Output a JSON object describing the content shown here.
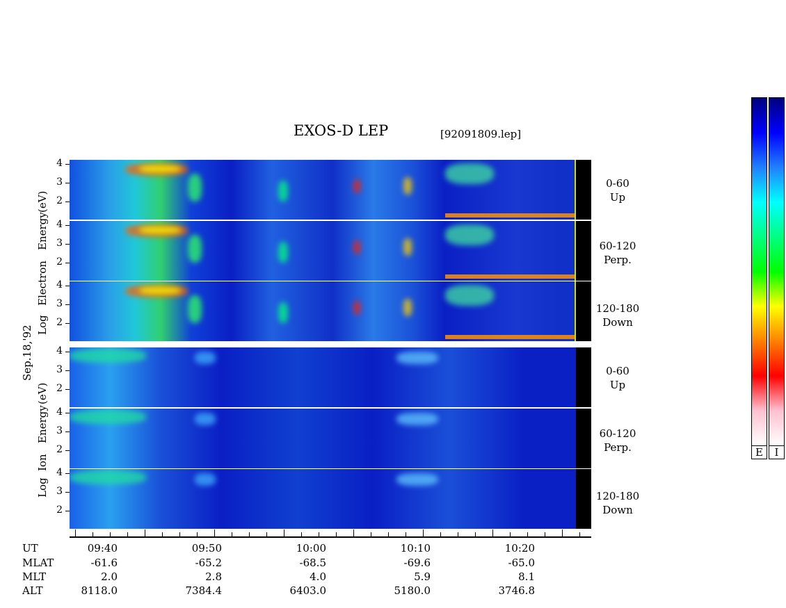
{
  "title": "EXOS-D LEP",
  "filename": "[92091809.lep]",
  "date_label": "Sep.18,'92",
  "colors": {
    "spectrogram_blue": "#0a1fc4",
    "background_dark": "#000080",
    "colorbar": [
      "#000080",
      "#0000ff",
      "#2080ff",
      "#00ffff",
      "#00ff80",
      "#00ff00",
      "#ffff00",
      "#ff8000",
      "#ff0000",
      "#ffc0d0",
      "#ffffff"
    ]
  },
  "chart_data": {
    "type": "heatmap",
    "title": "EXOS-D LEP",
    "groups": [
      {
        "species": "Electron",
        "ylabel_lines": [
          "Log",
          "Electron",
          "Energy",
          "(eV)"
        ],
        "yticks": [
          "4",
          "3",
          "2"
        ],
        "panels": [
          {
            "angle": "0-60",
            "direction": "Up"
          },
          {
            "angle": "60-120",
            "direction": "Perp."
          },
          {
            "angle": "120-180",
            "direction": "Down"
          }
        ]
      },
      {
        "species": "Ion",
        "ylabel_lines": [
          "Log",
          "Ion",
          "Energy",
          "(eV)"
        ],
        "yticks": [
          "4",
          "3",
          "2"
        ],
        "panels": [
          {
            "angle": "0-60",
            "direction": "Up"
          },
          {
            "angle": "60-120",
            "direction": "Perp."
          },
          {
            "angle": "120-180",
            "direction": "Down"
          }
        ]
      }
    ],
    "colorbar_labels": [
      "E",
      "I"
    ],
    "x_axis": {
      "rows": [
        "UT",
        "MLAT",
        "MLT",
        "ALT"
      ],
      "columns": [
        {
          "UT": "09:40",
          "MLAT": "-61.6",
          "MLT": "2.0",
          "ALT": "8118.0"
        },
        {
          "UT": "09:50",
          "MLAT": "-65.2",
          "MLT": "2.8",
          "ALT": "7384.4"
        },
        {
          "UT": "10:00",
          "MLAT": "-68.5",
          "MLT": "4.0",
          "ALT": "6403.0"
        },
        {
          "UT": "10:10",
          "MLAT": "-69.6",
          "MLT": "5.9",
          "ALT": "5180.0"
        },
        {
          "UT": "10:20",
          "MLAT": "-65.0",
          "MLT": "8.1",
          "ALT": "3746.8"
        }
      ]
    }
  }
}
